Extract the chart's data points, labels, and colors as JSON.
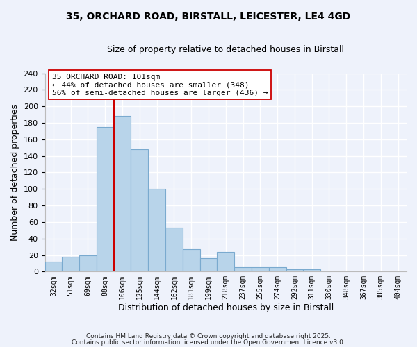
{
  "title_line1": "35, ORCHARD ROAD, BIRSTALL, LEICESTER, LE4 4GD",
  "title_line2": "Size of property relative to detached houses in Birstall",
  "xlabel": "Distribution of detached houses by size in Birstall",
  "ylabel": "Number of detached properties",
  "bin_labels": [
    "32sqm",
    "51sqm",
    "69sqm",
    "88sqm",
    "106sqm",
    "125sqm",
    "144sqm",
    "162sqm",
    "181sqm",
    "199sqm",
    "218sqm",
    "237sqm",
    "255sqm",
    "274sqm",
    "292sqm",
    "311sqm",
    "330sqm",
    "348sqm",
    "367sqm",
    "385sqm",
    "404sqm"
  ],
  "bin_values": [
    12,
    18,
    20,
    175,
    188,
    148,
    100,
    53,
    27,
    16,
    24,
    5,
    5,
    5,
    3,
    3,
    0,
    0,
    0,
    0,
    0
  ],
  "bar_color": "#b8d4ea",
  "bar_edge_color": "#7aaacf",
  "vline_color": "#cc0000",
  "annotation_text": "35 ORCHARD ROAD: 101sqm\n← 44% of detached houses are smaller (348)\n56% of semi-detached houses are larger (436) →",
  "annotation_box_facecolor": "#ffffff",
  "annotation_box_edgecolor": "#cc0000",
  "ylim": [
    0,
    240
  ],
  "yticks": [
    0,
    20,
    40,
    60,
    80,
    100,
    120,
    140,
    160,
    180,
    200,
    220,
    240
  ],
  "footer_line1": "Contains HM Land Registry data © Crown copyright and database right 2025.",
  "footer_line2": "Contains public sector information licensed under the Open Government Licence v3.0.",
  "bg_color": "#eef2fb",
  "grid_color": "#ffffff"
}
